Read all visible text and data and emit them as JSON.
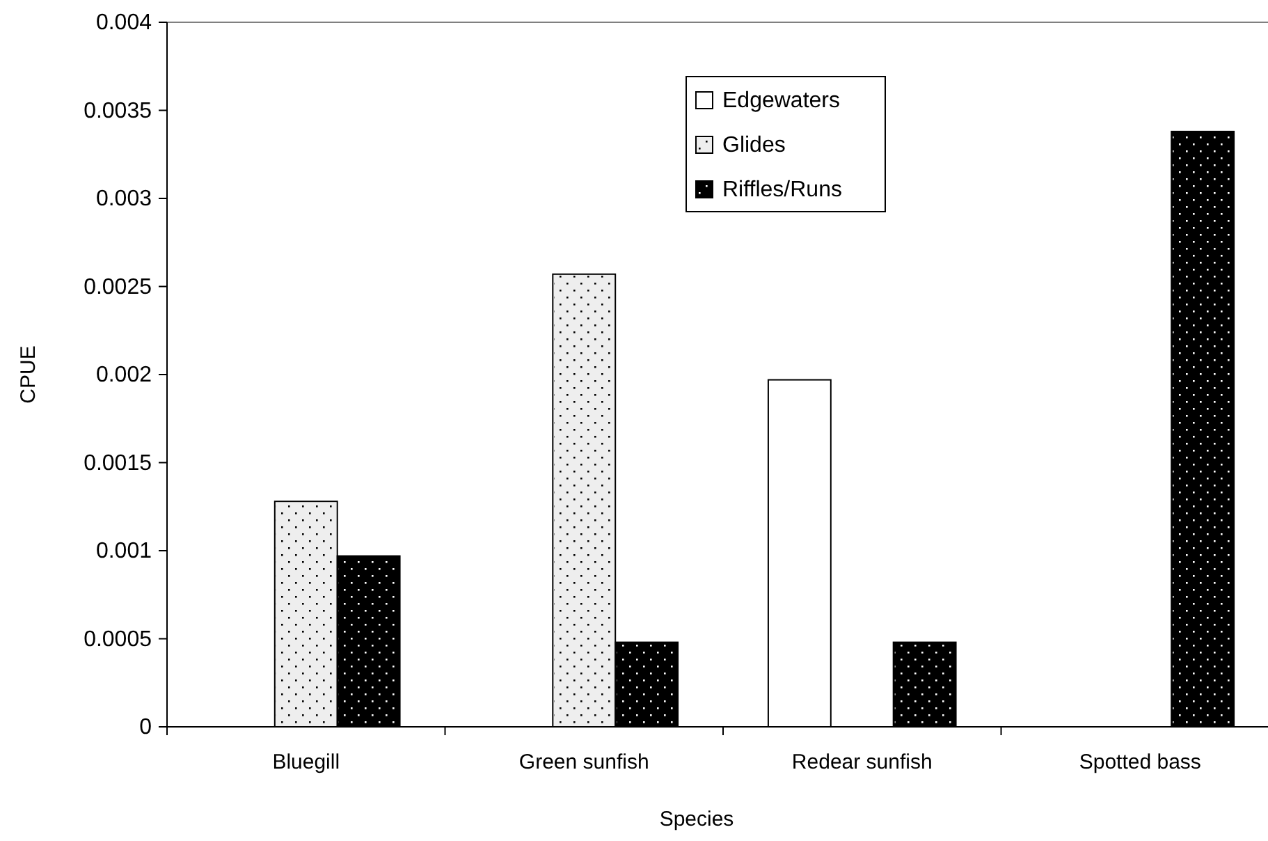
{
  "chart_data": {
    "type": "bar",
    "xlabel": "Species",
    "ylabel": "CPUE",
    "categories": [
      "Bluegill",
      "Green sunfish",
      "Redear sunfish",
      "Spotted bass"
    ],
    "series": [
      {
        "name": "Edgewaters",
        "color": "#ffffff",
        "values": [
          0,
          0,
          0.00197,
          0
        ]
      },
      {
        "name": "Glides",
        "color": "#eeeeee",
        "values": [
          0.00128,
          0.00257,
          0,
          0
        ]
      },
      {
        "name": "Riffles/Runs",
        "color": "#000000",
        "values": [
          0.00097,
          0.00048,
          0.00048,
          0.00338
        ]
      }
    ],
    "ylim": [
      0,
      0.004
    ],
    "yticks": [
      0,
      0.0005,
      0.001,
      0.0015,
      0.002,
      0.0025,
      0.003,
      0.0035,
      0.004
    ],
    "grid": false,
    "legend": "top"
  }
}
